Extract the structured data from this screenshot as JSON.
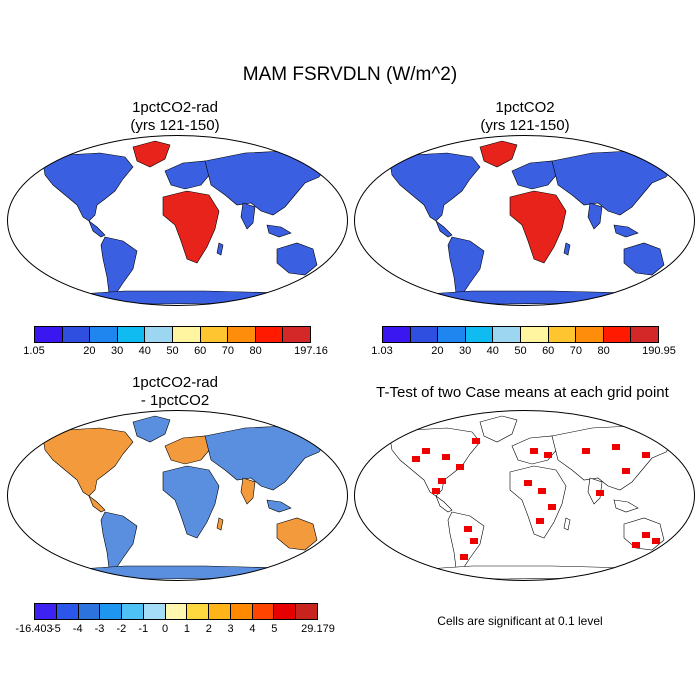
{
  "title": "MAM FSRVDLN (W/m^2)",
  "panels": [
    {
      "title_line1": "1pctCO2-rad",
      "title_line2": "(yrs 121-150)"
    },
    {
      "title_line1": "1pctCO2",
      "title_line2": "(yrs 121-150)"
    },
    {
      "title_line1": "1pctCO2-rad",
      "title_line2": "- 1pctCO2"
    },
    {
      "title_line1": "T-Test of two Case means at each grid point",
      "title_line2": ""
    }
  ],
  "colorbars": {
    "top_left": {
      "colors": [
        "#3a16f0",
        "#2e4fe0",
        "#1f86ef",
        "#10bbf2",
        "#9cd6f0",
        "#fff4a0",
        "#ffc531",
        "#ff8d0c",
        "#ff1a00",
        "#d42828"
      ],
      "labels": [
        "1.05",
        "20",
        "30",
        "40",
        "50",
        "60",
        "70",
        "80",
        "197.16"
      ]
    },
    "top_right": {
      "colors": [
        "#3a16f0",
        "#2e4fe0",
        "#1f86ef",
        "#10bbf2",
        "#9cd6f0",
        "#fff4a0",
        "#ffc531",
        "#ff8d0c",
        "#ff1a00",
        "#d42828"
      ],
      "labels": [
        "1.03",
        "20",
        "30",
        "40",
        "50",
        "60",
        "70",
        "80",
        "190.95"
      ]
    },
    "bottom_left": {
      "colors": [
        "#3d22f2",
        "#2c55ea",
        "#2c73dd",
        "#1e96ef",
        "#4fc2f5",
        "#a5dcf7",
        "#fff6b0",
        "#ffd840",
        "#ffb51a",
        "#ff8a00",
        "#ff4400",
        "#e60000",
        "#c8241f"
      ],
      "labels": [
        "-16.403",
        "-5",
        "-4",
        "-3",
        "-2",
        "-1",
        "0",
        "1",
        "2",
        "3",
        "4",
        "5",
        "29.179"
      ]
    }
  },
  "significance_note": "Cells are significant at 0.1 level",
  "map_colors": {
    "land_mean": "#3a5fe0",
    "land_high": "#e8231c",
    "diff_pos": "#f39a3c",
    "diff_neg": "#5a8fe0",
    "significant": "#ee0000"
  }
}
